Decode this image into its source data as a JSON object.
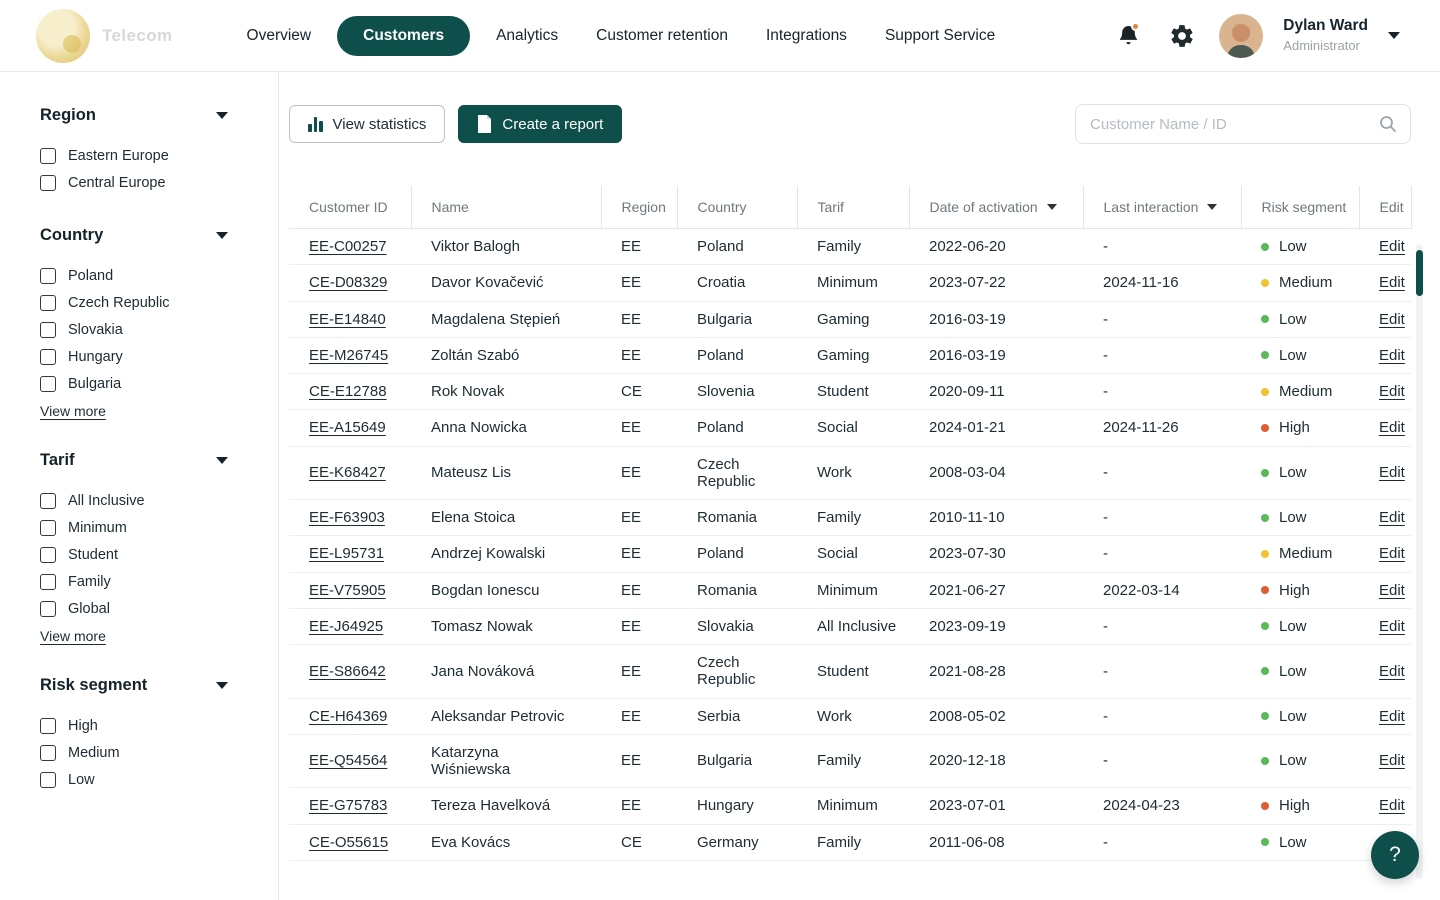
{
  "brand": {
    "name": "Telecom"
  },
  "nav": {
    "items": [
      {
        "label": "Overview",
        "active": false
      },
      {
        "label": "Customers",
        "active": true
      },
      {
        "label": "Analytics",
        "active": false
      },
      {
        "label": "Customer retention",
        "active": false
      },
      {
        "label": "Integrations",
        "active": false
      },
      {
        "label": "Support Service",
        "active": false
      }
    ]
  },
  "user": {
    "name": "Dylan Ward",
    "role": "Administrator"
  },
  "sidebar": {
    "view_more_label": "View more",
    "sections": [
      {
        "title": "Region",
        "items": [
          "Eastern Europe",
          "Central Europe"
        ],
        "view_more": false
      },
      {
        "title": "Country",
        "items": [
          "Poland",
          "Czech Republic",
          "Slovakia",
          "Hungary",
          "Bulgaria"
        ],
        "view_more": true
      },
      {
        "title": "Tarif",
        "items": [
          "All Inclusive",
          "Minimum",
          "Student",
          "Family",
          "Global"
        ],
        "view_more": true
      },
      {
        "title": "Risk segment",
        "items": [
          "High",
          "Medium",
          "Low"
        ],
        "view_more": false
      }
    ]
  },
  "toolbar": {
    "view_statistics": "View statistics",
    "create_report": "Create a report",
    "search_placeholder": "Customer Name / ID"
  },
  "table": {
    "headers": [
      {
        "label": "Customer ID",
        "sortable": false
      },
      {
        "label": "Name",
        "sortable": false
      },
      {
        "label": "Region",
        "sortable": false
      },
      {
        "label": "Country",
        "sortable": false
      },
      {
        "label": "Tarif",
        "sortable": false
      },
      {
        "label": "Date of activation",
        "sortable": true
      },
      {
        "label": "Last interaction",
        "sortable": true
      },
      {
        "label": "Risk segment",
        "sortable": false
      },
      {
        "label": "Edit",
        "sortable": false
      }
    ],
    "edit_label": "Edit",
    "rows": [
      {
        "id": "EE-C00257",
        "name": "Viktor Balogh",
        "region": "EE",
        "country": "Poland",
        "tarif": "Family",
        "activated": "2022-06-20",
        "last": "-",
        "risk": "Low"
      },
      {
        "id": "CE-D08329",
        "name": "Davor Kovačević",
        "region": "EE",
        "country": "Croatia",
        "tarif": "Minimum",
        "activated": "2023-07-22",
        "last": "2024-11-16",
        "risk": "Medium"
      },
      {
        "id": "EE-E14840",
        "name": "Magdalena Stępień",
        "region": "EE",
        "country": "Bulgaria",
        "tarif": "Gaming",
        "activated": "2016-03-19",
        "last": "-",
        "risk": "Low"
      },
      {
        "id": "EE-M26745",
        "name": "Zoltán Szabó",
        "region": "EE",
        "country": "Poland",
        "tarif": "Gaming",
        "activated": "2016-03-19",
        "last": "-",
        "risk": "Low"
      },
      {
        "id": "CE-E12788",
        "name": "Rok Novak",
        "region": "CE",
        "country": "Slovenia",
        "tarif": "Student",
        "activated": "2020-09-11",
        "last": "-",
        "risk": "Medium"
      },
      {
        "id": "EE-A15649",
        "name": "Anna Nowicka",
        "region": "EE",
        "country": "Poland",
        "tarif": "Social",
        "activated": "2024-01-21",
        "last": "2024-11-26",
        "risk": "High"
      },
      {
        "id": "EE-K68427",
        "name": "Mateusz Lis",
        "region": "EE",
        "country": "Czech Republic",
        "tarif": "Work",
        "activated": "2008-03-04",
        "last": "-",
        "risk": "Low"
      },
      {
        "id": "EE-F63903",
        "name": "Elena Stoica",
        "region": "EE",
        "country": "Romania",
        "tarif": "Family",
        "activated": "2010-11-10",
        "last": "-",
        "risk": "Low"
      },
      {
        "id": "EE-L95731",
        "name": "Andrzej Kowalski",
        "region": "EE",
        "country": "Poland",
        "tarif": "Social",
        "activated": "2023-07-30",
        "last": "-",
        "risk": "Medium"
      },
      {
        "id": "EE-V75905",
        "name": "Bogdan Ionescu",
        "region": "EE",
        "country": "Romania",
        "tarif": "Minimum",
        "activated": "2021-06-27",
        "last": "2022-03-14",
        "risk": "High"
      },
      {
        "id": "EE-J64925",
        "name": "Tomasz Nowak",
        "region": "EE",
        "country": "Slovakia",
        "tarif": "All Inclusive",
        "activated": "2023-09-19",
        "last": "-",
        "risk": "Low"
      },
      {
        "id": "EE-S86642",
        "name": "Jana Nováková",
        "region": "EE",
        "country": "Czech Republic",
        "tarif": "Student",
        "activated": "2021-08-28",
        "last": "-",
        "risk": "Low"
      },
      {
        "id": "CE-H64369",
        "name": "Aleksandar Petrovic",
        "region": "EE",
        "country": "Serbia",
        "tarif": "Work",
        "activated": "2008-05-02",
        "last": "-",
        "risk": "Low"
      },
      {
        "id": "EE-Q54564",
        "name": "Katarzyna Wiśniewska",
        "region": "EE",
        "country": "Bulgaria",
        "tarif": "Family",
        "activated": "2020-12-18",
        "last": "-",
        "risk": "Low"
      },
      {
        "id": "EE-G75783",
        "name": "Tereza Havelková",
        "region": "EE",
        "country": "Hungary",
        "tarif": "Minimum",
        "activated": "2023-07-01",
        "last": "2024-04-23",
        "risk": "High"
      },
      {
        "id": "CE-O55615",
        "name": "Eva Kovács",
        "region": "CE",
        "country": "Germany",
        "tarif": "Family",
        "activated": "2011-06-08",
        "last": "-",
        "risk": "Low"
      }
    ]
  },
  "risk_colors": {
    "Low": "#5cb85c",
    "Medium": "#f0c330",
    "High": "#e05a33"
  },
  "colors": {
    "accent_teal": "#0e4f4b",
    "notification_orange": "#e2853a"
  },
  "help_label": "?"
}
